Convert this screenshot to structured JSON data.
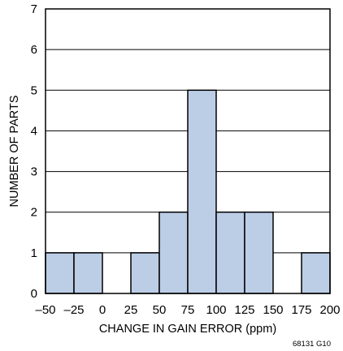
{
  "chart_data": {
    "type": "bar",
    "subtype": "histogram",
    "xlabel": "CHANGE IN GAIN ERROR (ppm)",
    "ylabel": "NUMBER OF PARTS",
    "xlim": [
      -50,
      200
    ],
    "ylim": [
      0,
      7
    ],
    "x_ticks": [
      "–50",
      "–25",
      "0",
      "25",
      "50",
      "75",
      "100",
      "125",
      "150",
      "175",
      "200"
    ],
    "y_ticks": [
      "0",
      "1",
      "2",
      "3",
      "4",
      "5",
      "6",
      "7"
    ],
    "bins": [
      {
        "from": -50,
        "to": -25,
        "count": 1
      },
      {
        "from": -25,
        "to": 0,
        "count": 1
      },
      {
        "from": 0,
        "to": 25,
        "count": 0
      },
      {
        "from": 25,
        "to": 50,
        "count": 1
      },
      {
        "from": 50,
        "to": 75,
        "count": 2
      },
      {
        "from": 75,
        "to": 100,
        "count": 5
      },
      {
        "from": 100,
        "to": 125,
        "count": 2
      },
      {
        "from": 125,
        "to": 150,
        "count": 2
      },
      {
        "from": 150,
        "to": 175,
        "count": 0
      },
      {
        "from": 175,
        "to": 200,
        "count": 1
      }
    ],
    "grid": "horizontal",
    "legend": "none",
    "bar_color": "#bccde6",
    "figure_id": "68131 G10"
  }
}
